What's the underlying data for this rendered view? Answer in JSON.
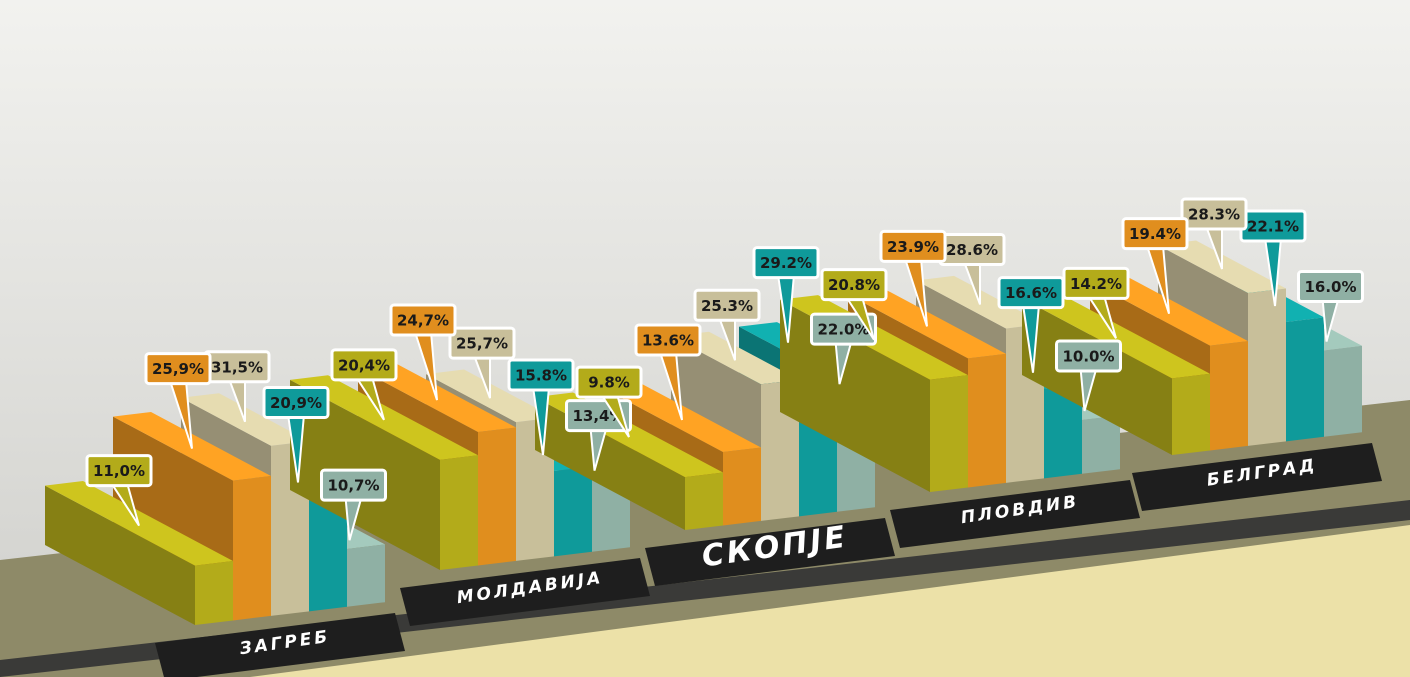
{
  "chart_data": {
    "type": "bar",
    "categories": [
      "ЗАГРЕБ",
      "МОЛДАВИЈА",
      "СКОПЈЕ",
      "ПЛОВДИВ",
      "БЕЛГРАД"
    ],
    "series": [
      {
        "color": "#b3ab1a",
        "values": [
          11.0,
          20.4,
          9.8,
          20.8,
          14.2
        ],
        "value_labels": [
          "11,0%",
          "20,4%",
          "9.8%",
          "20.8%",
          "14.2%"
        ]
      },
      {
        "color": "#e08e1e",
        "values": [
          25.9,
          24.7,
          13.6,
          23.9,
          19.4
        ],
        "value_labels": [
          "25,9%",
          "24,7%",
          "13.6%",
          "23.9%",
          "19.4%"
        ]
      },
      {
        "color": "#c8bf9a",
        "values": [
          31.5,
          25.7,
          25.3,
          28.6,
          28.3
        ],
        "value_labels": [
          "31,5%",
          "25,7%",
          "25.3%",
          "28.6%",
          "28.3%"
        ]
      },
      {
        "color": "#0f9a9a",
        "values": [
          20.9,
          15.8,
          29.2,
          16.6,
          22.1
        ],
        "value_labels": [
          "20,9%",
          "15.8%",
          "29.2%",
          "16.6%",
          "22.1%"
        ]
      },
      {
        "color": "#8fb0a4",
        "values": [
          10.7,
          13.4,
          22.0,
          10.0,
          16.0
        ],
        "value_labels": [
          "10,7%",
          "13,4%",
          "22.0%",
          "10.0%",
          "16.0%"
        ]
      }
    ]
  }
}
